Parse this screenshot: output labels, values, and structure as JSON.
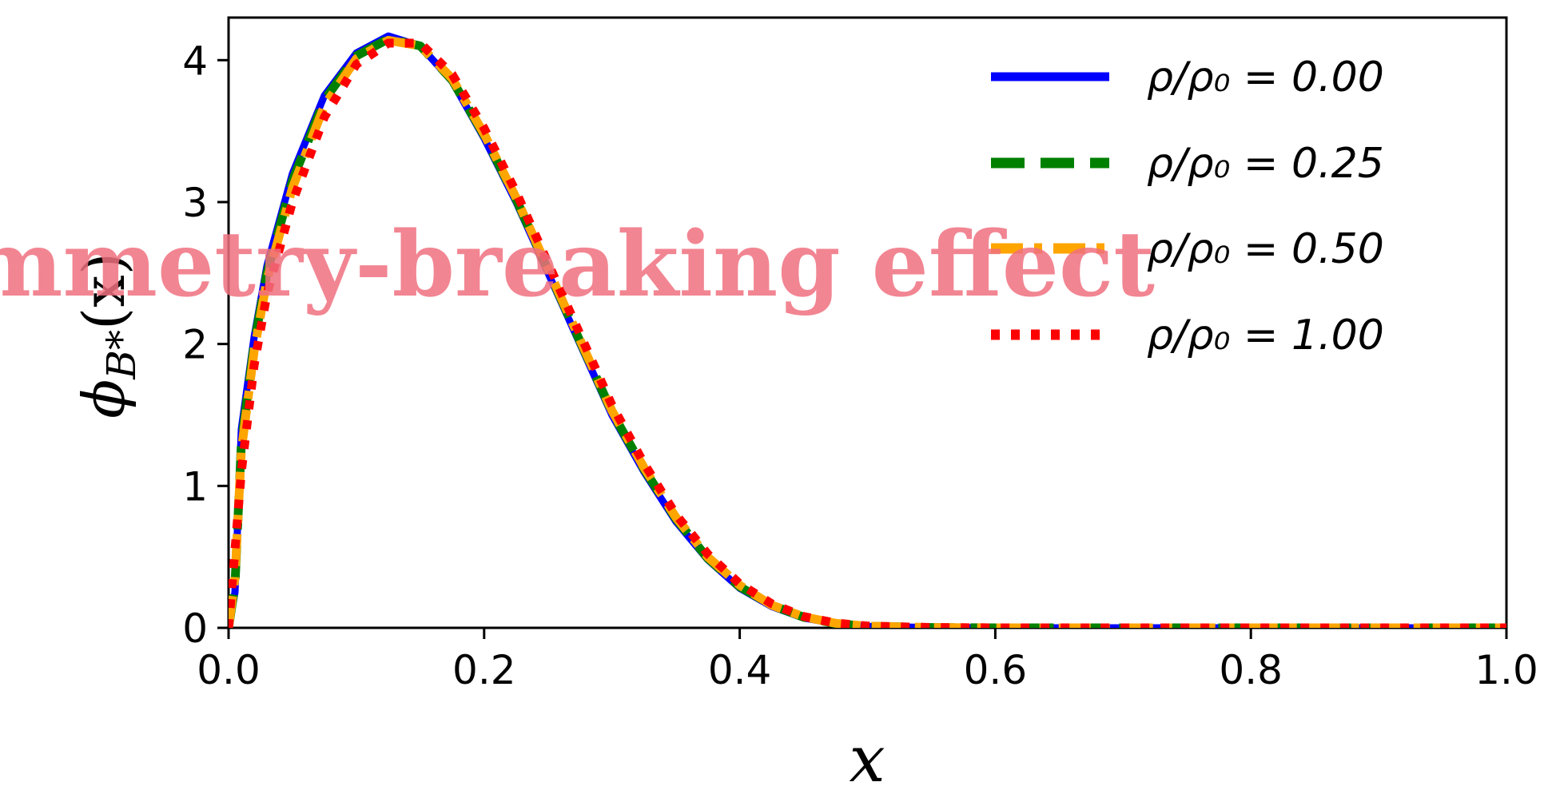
{
  "chart_data": {
    "type": "line",
    "xlabel": "x",
    "ylabel": "ϕ_B*(x)",
    "xlim": [
      0,
      1
    ],
    "ylim": [
      0,
      4.3
    ],
    "x_ticks": [
      "0.0",
      "0.2",
      "0.4",
      "0.6",
      "0.8",
      "1.0"
    ],
    "x_ticks_values": [
      0,
      0.2,
      0.4,
      0.6,
      0.8,
      1.0
    ],
    "y_ticks": [
      "0",
      "1",
      "2",
      "3",
      "4"
    ],
    "y_ticks_values": [
      0,
      1,
      2,
      3,
      4
    ],
    "grid": false,
    "legend_position": "top-right",
    "x": [
      0,
      0.005,
      0.01,
      0.02,
      0.03,
      0.05,
      0.075,
      0.1,
      0.125,
      0.15,
      0.175,
      0.2,
      0.225,
      0.25,
      0.275,
      0.3,
      0.325,
      0.35,
      0.375,
      0.4,
      0.425,
      0.45,
      0.475,
      0.5,
      0.55,
      0.6,
      0.7,
      0.8,
      0.9,
      1.0
    ],
    "series": [
      {
        "name": "ρ/ρ₀ = 0.00",
        "color": "#0000ff",
        "dash": "solid",
        "values": [
          0,
          0.25,
          1.4,
          2.05,
          2.55,
          3.2,
          3.75,
          4.05,
          4.17,
          4.1,
          3.85,
          3.45,
          3.0,
          2.5,
          2.0,
          1.5,
          1.1,
          0.75,
          0.48,
          0.28,
          0.15,
          0.07,
          0.03,
          0.01,
          0.002,
          0.0,
          0.0,
          0.0,
          0.0,
          0.0
        ]
      },
      {
        "name": "ρ/ρ₀ = 0.25",
        "color": "#008000",
        "dash": "dashed",
        "values": [
          0,
          0.3,
          1.3,
          2.0,
          2.5,
          3.15,
          3.72,
          4.03,
          4.15,
          4.1,
          3.86,
          3.47,
          3.02,
          2.52,
          2.02,
          1.52,
          1.12,
          0.77,
          0.49,
          0.29,
          0.16,
          0.075,
          0.03,
          0.012,
          0.002,
          0.0,
          0.0,
          0.0,
          0.0,
          0.0
        ]
      },
      {
        "name": "ρ/ρ₀ = 0.50",
        "color": "#ffa500",
        "dash": "dashdot",
        "values": [
          0,
          0.35,
          1.25,
          1.95,
          2.45,
          3.1,
          3.68,
          4.01,
          4.14,
          4.1,
          3.87,
          3.48,
          3.03,
          2.53,
          2.03,
          1.53,
          1.13,
          0.78,
          0.5,
          0.3,
          0.16,
          0.078,
          0.032,
          0.012,
          0.002,
          0.0,
          0.0,
          0.0,
          0.0,
          0.0
        ]
      },
      {
        "name": "ρ/ρ₀ = 1.00",
        "color": "#ff0000",
        "dash": "dotted",
        "values": [
          0,
          0.55,
          1.1,
          1.85,
          2.35,
          3.0,
          3.6,
          3.97,
          4.12,
          4.12,
          3.9,
          3.52,
          3.07,
          2.57,
          2.07,
          1.57,
          1.16,
          0.8,
          0.52,
          0.31,
          0.17,
          0.08,
          0.034,
          0.013,
          0.002,
          0.0,
          0.0,
          0.0,
          0.0,
          0.0
        ]
      }
    ]
  },
  "legend": {
    "entries": [
      {
        "text": "ρ/ρ₀ = 0.00"
      },
      {
        "text": "ρ/ρ₀ = 0.25"
      },
      {
        "text": "ρ/ρ₀ = 0.50"
      },
      {
        "text": "ρ/ρ₀ = 1.00"
      }
    ]
  },
  "overlay": {
    "text": "mmetry-breaking effect"
  }
}
